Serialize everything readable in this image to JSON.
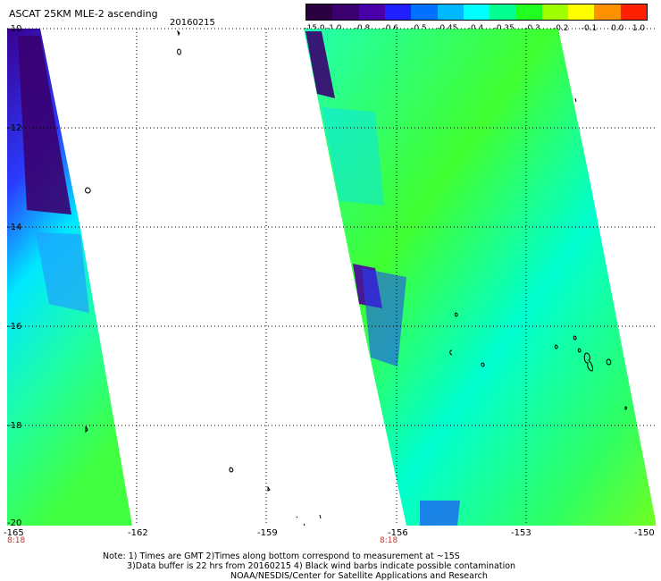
{
  "header": {
    "title": "ASCAT 25KM MLE-2 ascending",
    "date": "20160215"
  },
  "colorbar": {
    "labels": [
      "-15.0",
      "-1.0",
      "-0.8",
      "-0.6",
      "-0.5",
      "-0.45",
      "-0.4",
      "-0.35",
      "-0.3",
      "-0.2",
      "-0.1",
      "0.0",
      "1.0"
    ],
    "colors": [
      "#2a0040",
      "#3b0070",
      "#4a00a8",
      "#2020ff",
      "#0070ff",
      "#00b8ff",
      "#00ffff",
      "#00ff90",
      "#20ff20",
      "#a0ff00",
      "#ffff00",
      "#ff9000",
      "#ff2000"
    ]
  },
  "axes": {
    "y_ticks": [
      "-10",
      "-12",
      "-14",
      "-16",
      "-18",
      "-20"
    ],
    "x_ticks": [
      "-165",
      "-162",
      "-159",
      "-156",
      "-153",
      "-150"
    ],
    "time_labels": [
      "8:18",
      "8:18"
    ]
  },
  "notes": {
    "line1": "Note: 1) Times are GMT 2)Times along bottom correspond to measurement at ~15S",
    "line2": "3)Data buffer is 22 hrs from 20160215 4) Black wind barbs indicate possible contamination",
    "line3": "NOAA/NESDIS/Center for Satellite Applications and Research"
  },
  "swaths": [
    {
      "name": "west-swath"
    },
    {
      "name": "east-swath"
    }
  ]
}
